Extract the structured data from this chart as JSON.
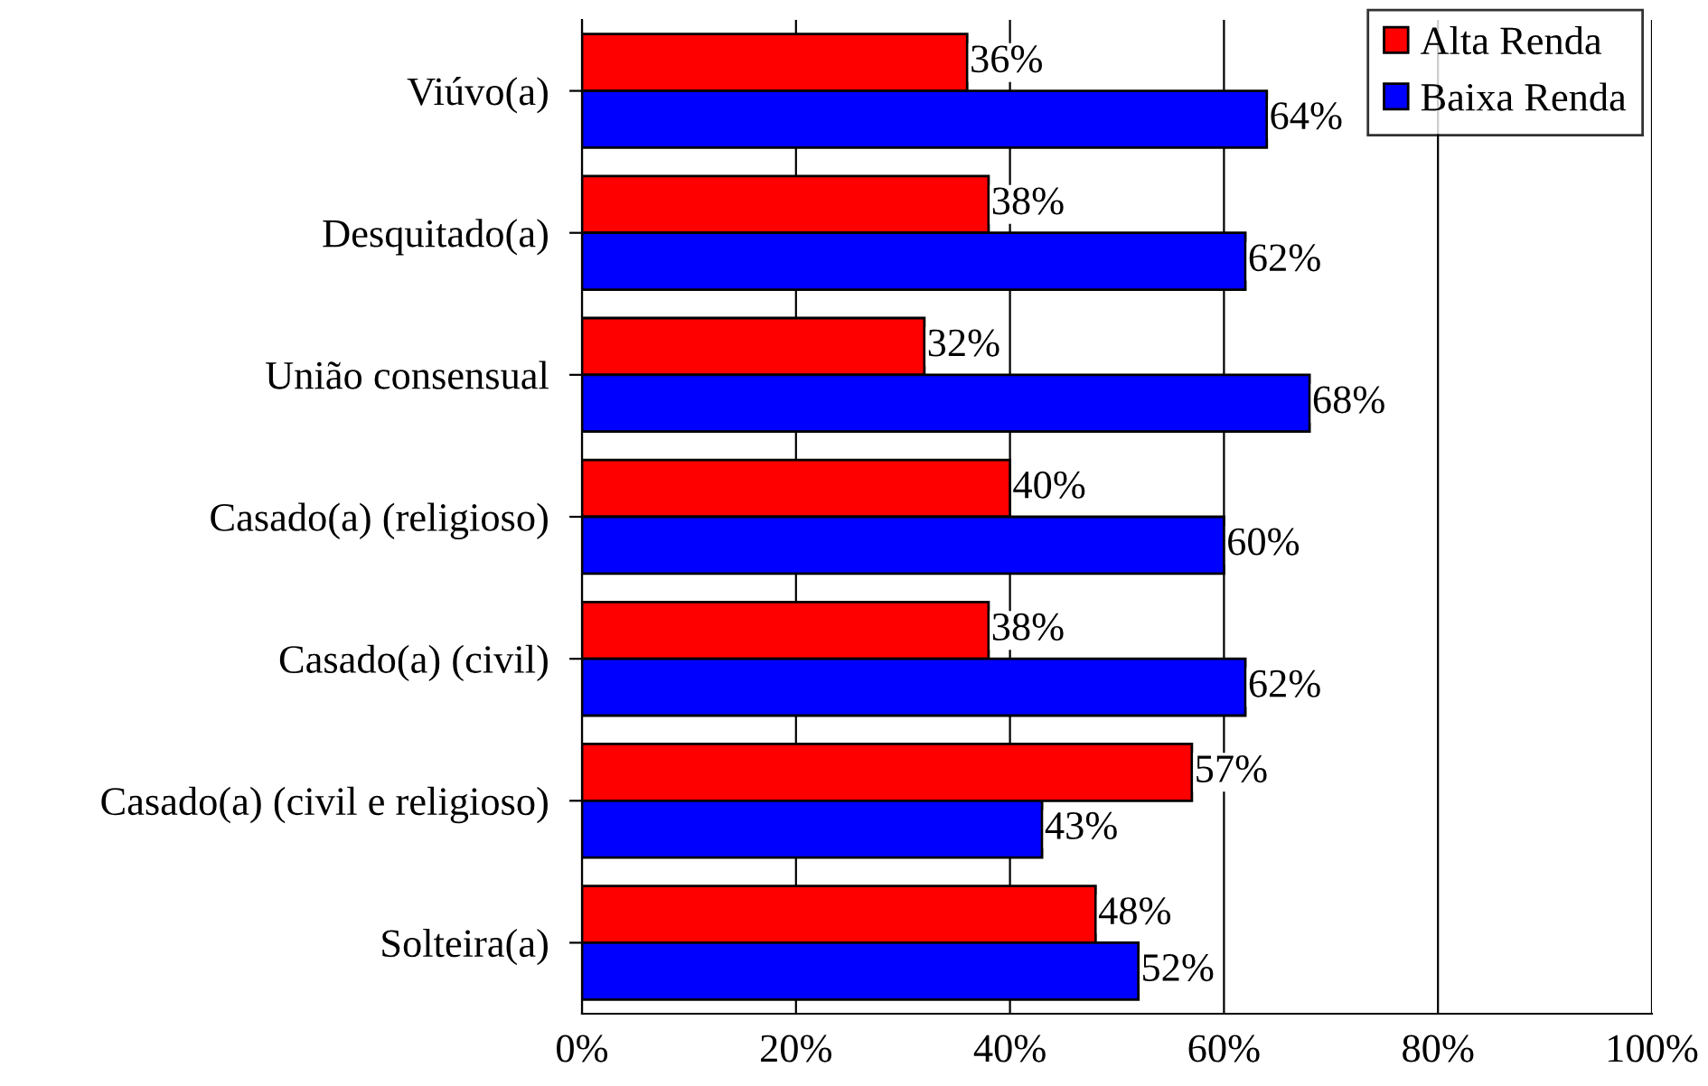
{
  "chart_data": {
    "type": "bar",
    "orientation": "horizontal",
    "categories": [
      "Viúvo(a)",
      "Desquitado(a)",
      "União consensual",
      "Casado(a) (religioso)",
      "Casado(a) (civil)",
      "Casado(a) (civil e religioso)",
      "Solteira(a)"
    ],
    "series": [
      {
        "name": "Alta Renda",
        "color": "#ff0000",
        "values": [
          36,
          38,
          32,
          40,
          38,
          57,
          48
        ],
        "value_labels": [
          "36%",
          "38%",
          "32%",
          "40%",
          "38%",
          "57%",
          "48%"
        ]
      },
      {
        "name": "Baixa Renda",
        "color": "#0000ff",
        "values": [
          64,
          62,
          68,
          60,
          62,
          43,
          52
        ],
        "value_labels": [
          "64%",
          "62%",
          "68%",
          "60%",
          "62%",
          "43%",
          "52%"
        ]
      }
    ],
    "xlim": [
      0,
      100
    ],
    "xticks": [
      {
        "value": 0,
        "label": "0%"
      },
      {
        "value": 20,
        "label": "20%"
      },
      {
        "value": 40,
        "label": "40%"
      },
      {
        "value": 60,
        "label": "60%"
      },
      {
        "value": 80,
        "label": "80%"
      },
      {
        "value": 100,
        "label": "100%"
      }
    ],
    "grid": "x",
    "legend": "top right"
  }
}
